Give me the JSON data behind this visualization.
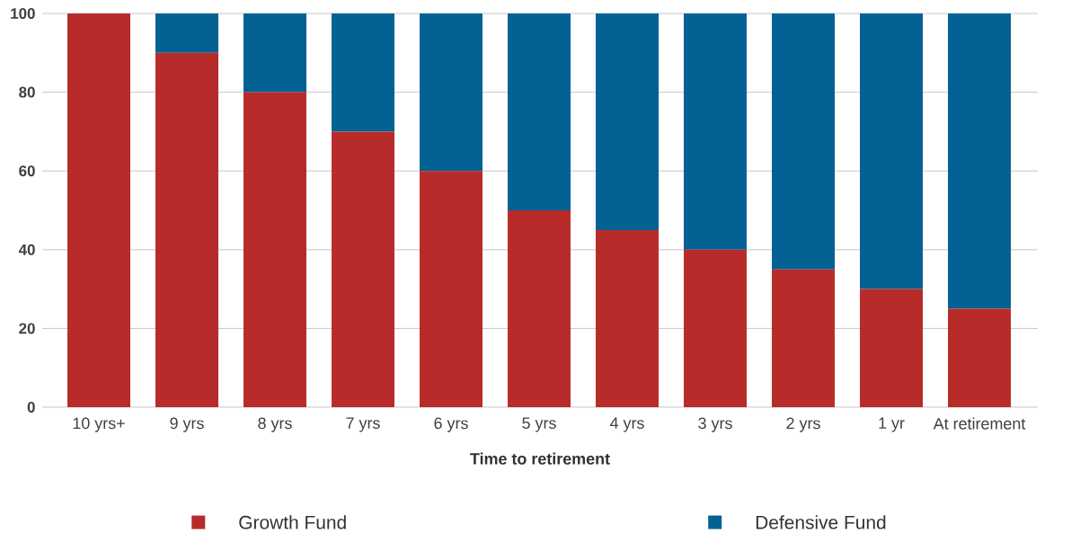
{
  "chart_data": {
    "type": "bar",
    "stacked": true,
    "xlabel": "Time to retirement",
    "categories": [
      "10 yrs+",
      "9 yrs",
      "8 yrs",
      "7 yrs",
      "6 yrs",
      "5 yrs",
      "4 yrs",
      "3 yrs",
      "2 yrs",
      "1 yr",
      "At retirement"
    ],
    "series": [
      {
        "name": "Growth Fund",
        "color": "#b82b2b",
        "values": [
          100,
          90,
          80,
          70,
          60,
          50,
          45,
          40,
          35,
          30,
          25
        ]
      },
      {
        "name": "Defensive Fund",
        "color": "#036194",
        "values": [
          0,
          10,
          20,
          30,
          40,
          50,
          55,
          60,
          65,
          70,
          75
        ]
      }
    ],
    "ylim": [
      0,
      100
    ],
    "yticks": [
      0,
      20,
      40,
      60,
      80,
      100
    ],
    "grid": "y",
    "legend": "bottom"
  }
}
